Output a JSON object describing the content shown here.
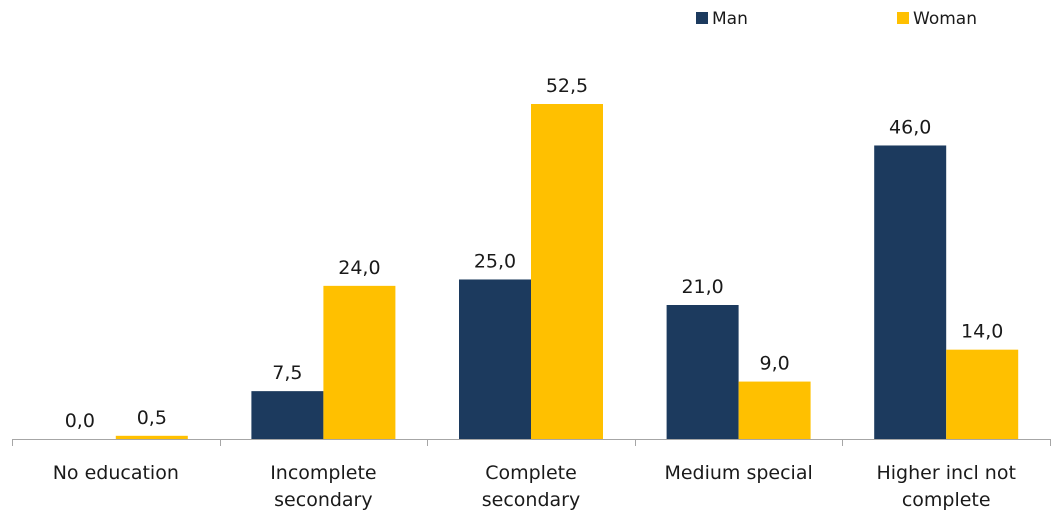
{
  "chart_data": {
    "type": "bar",
    "categories": [
      [
        "No education"
      ],
      [
        "Incomplete",
        "secondary"
      ],
      [
        "Complete",
        "secondary"
      ],
      [
        "Medium special"
      ],
      [
        "Higher incl not",
        "complete"
      ]
    ],
    "series": [
      {
        "name": "Man",
        "color": "#1c3a5e",
        "values": [
          0.0,
          7.5,
          25.0,
          21.0,
          46.0
        ],
        "labels": [
          "0,0",
          "7,5",
          "25,0",
          "21,0",
          "46,0"
        ]
      },
      {
        "name": "Woman",
        "color": "#ffc000",
        "values": [
          0.5,
          24.0,
          52.5,
          9.0,
          14.0
        ],
        "labels": [
          "0,5",
          "24,0",
          "52,5",
          "9,0",
          "14,0"
        ]
      }
    ],
    "ylim": [
      0,
      52.5
    ],
    "grid": false,
    "legend_position": "top-right"
  }
}
